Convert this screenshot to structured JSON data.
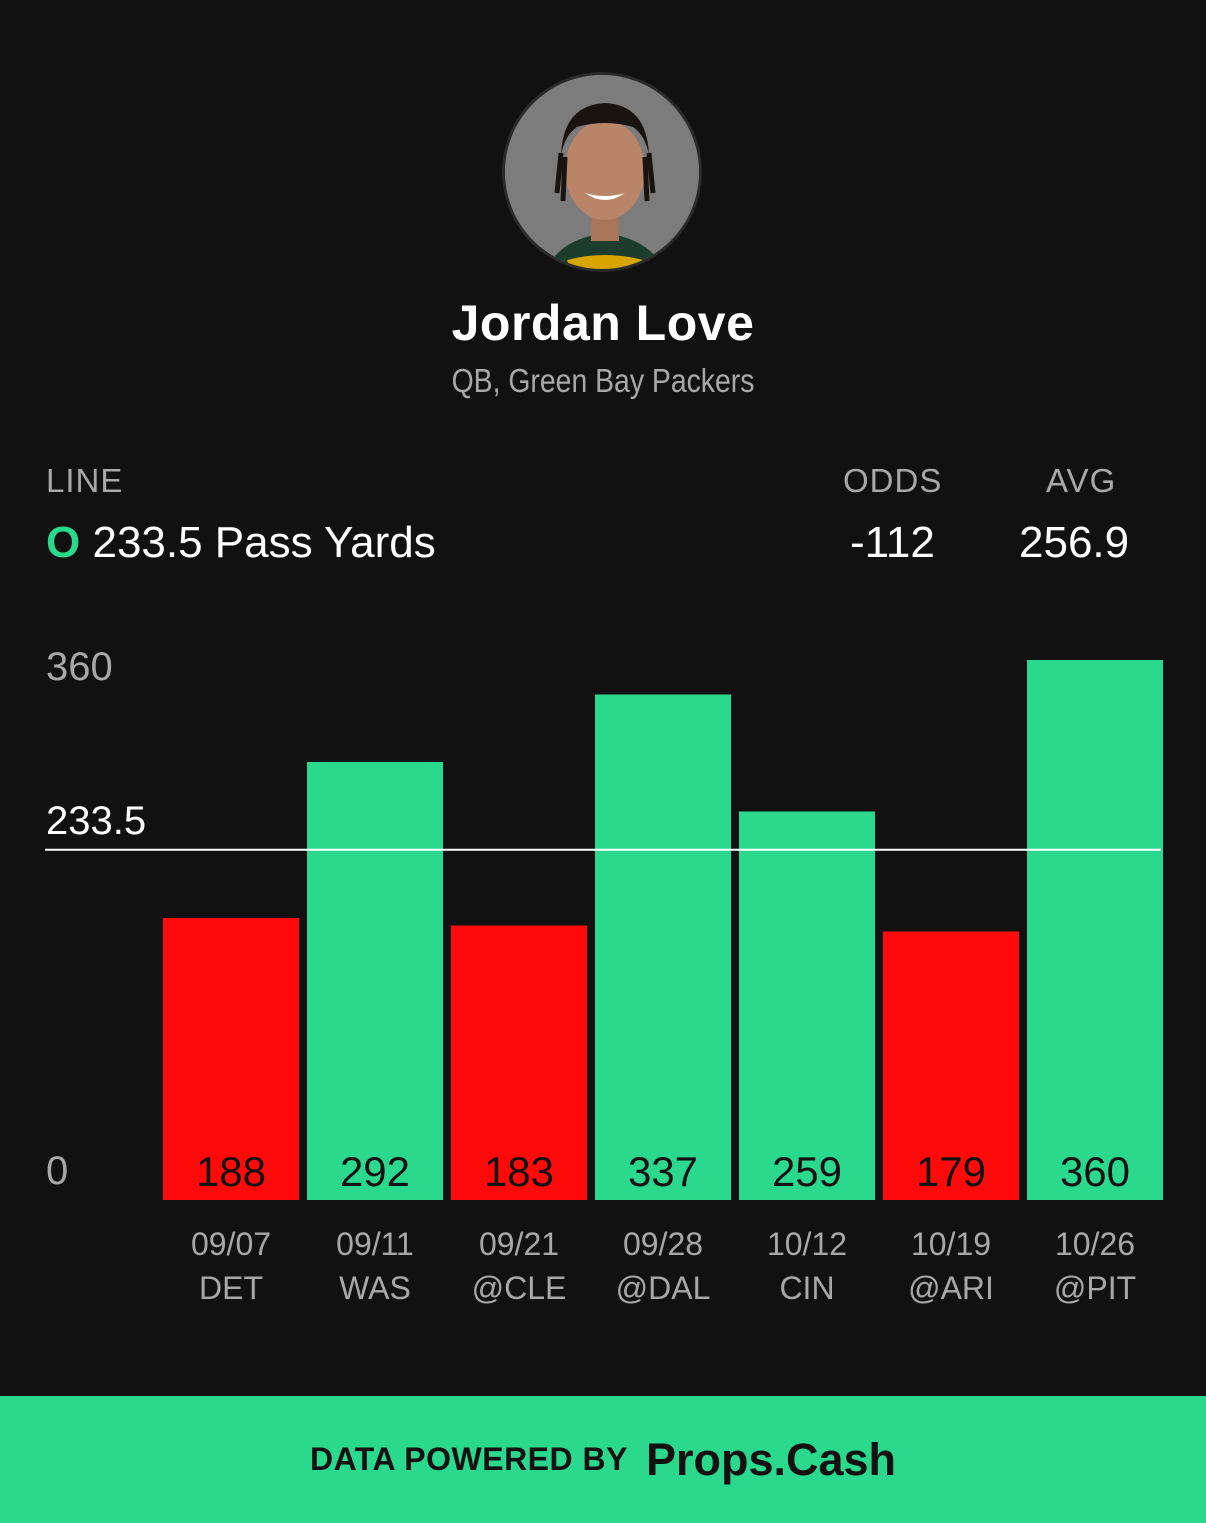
{
  "player": {
    "name": "Jordan Love",
    "subtitle": "QB, Green Bay Packers"
  },
  "stats": {
    "line_header": "LINE",
    "line_side": "O",
    "line_value": "233.5 Pass Yards",
    "odds_header": "ODDS",
    "odds_value": "-112",
    "avg_header": "AVG",
    "avg_value": "256.9"
  },
  "colors": {
    "over": "#2ad98d",
    "under": "#ff0a0a",
    "background": "#111111"
  },
  "chart_data": {
    "type": "bar",
    "categories": [
      "09/07 DET",
      "09/11 WAS",
      "09/21 @CLE",
      "09/28 @DAL",
      "10/12 CIN",
      "10/19 @ARI",
      "10/26 @PIT"
    ],
    "dates": [
      "09/07",
      "09/11",
      "09/21",
      "09/28",
      "10/12",
      "10/19",
      "10/26"
    ],
    "opponents": [
      "DET",
      "WAS",
      "@CLE",
      "@DAL",
      "CIN",
      "@ARI",
      "@PIT"
    ],
    "values": [
      188,
      292,
      183,
      337,
      259,
      179,
      360
    ],
    "line": 233.5,
    "line_label": "233.5",
    "y_ticks": [
      "360",
      "0"
    ],
    "ylim": [
      0,
      360
    ],
    "grid": false,
    "legend": "none"
  },
  "footer": {
    "powered_by": "DATA POWERED BY",
    "brand": "Props.Cash"
  }
}
